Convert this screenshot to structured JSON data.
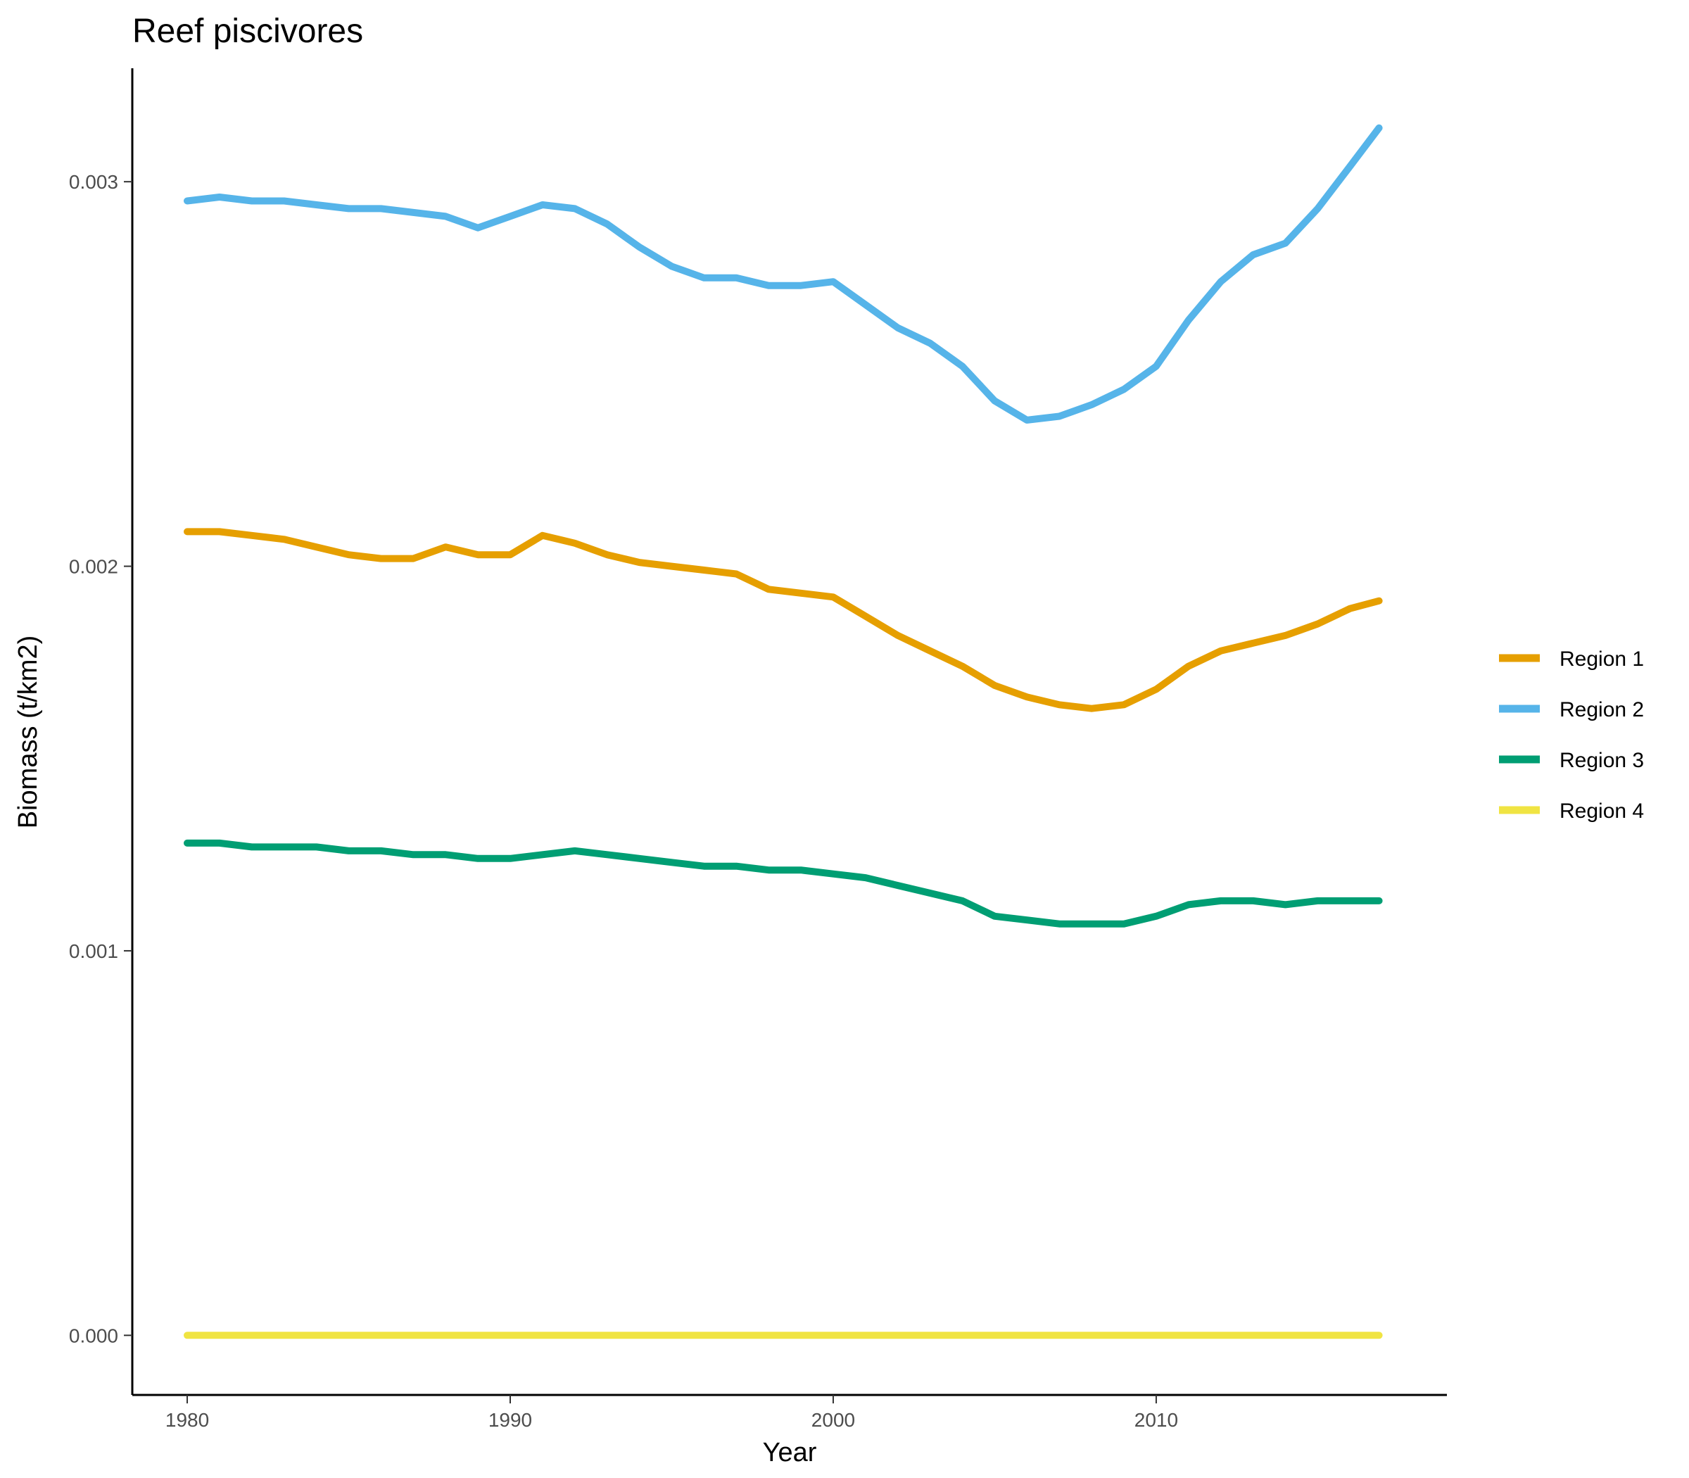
{
  "chart_data": {
    "type": "line",
    "title": "Reef piscivores",
    "xlabel": "Year",
    "ylabel": "Biomass (t/km2)",
    "xlim": [
      1978.3,
      2019.0
    ],
    "ylim": [
      -0.000155,
      0.003295
    ],
    "x_ticks": [
      1980,
      1990,
      2000,
      2010
    ],
    "x_tick_labels": [
      "1980",
      "1990",
      "2000",
      "2010"
    ],
    "y_ticks": [
      0.0,
      0.001,
      0.002,
      0.003
    ],
    "y_tick_labels": [
      "0.000",
      "0.001",
      "0.002",
      "0.003"
    ],
    "grid": false,
    "legend_position": "right",
    "series": [
      {
        "name": "Region 1",
        "color": "#E69F00",
        "x": [
          1980.0,
          1981.0,
          1982.0,
          1983.0,
          1984.0,
          1985.0,
          1986.0,
          1987.0,
          1988.0,
          1989.0,
          1990.0,
          1991.0,
          1992.0,
          1993.0,
          1994.0,
          1995.0,
          1996.0,
          1997.0,
          1998.0,
          1999.0,
          2000.0,
          2001.0,
          2002.0,
          2003.0,
          2004.0,
          2005.0,
          2006.0,
          2007.0,
          2008.0,
          2009.0,
          2010.0,
          2011.0,
          2012.0,
          2013.0,
          2014.0,
          2015.0,
          2016.0,
          2016.9
        ],
        "y": [
          0.00209,
          0.00209,
          0.00208,
          0.00207,
          0.00205,
          0.00203,
          0.00202,
          0.00202,
          0.00205,
          0.00203,
          0.00203,
          0.00208,
          0.00206,
          0.00203,
          0.00201,
          0.002,
          0.00199,
          0.00198,
          0.00194,
          0.00193,
          0.00192,
          0.00187,
          0.00182,
          0.00178,
          0.00174,
          0.00169,
          0.00166,
          0.00164,
          0.00163,
          0.00164,
          0.00168,
          0.00174,
          0.00178,
          0.0018,
          0.00182,
          0.00185,
          0.00189,
          0.00191
        ]
      },
      {
        "name": "Region 2",
        "color": "#56B4E9",
        "x": [
          1980.0,
          1981.0,
          1982.0,
          1983.0,
          1984.0,
          1985.0,
          1986.0,
          1987.0,
          1988.0,
          1989.0,
          1990.0,
          1991.0,
          1992.0,
          1993.0,
          1994.0,
          1995.0,
          1996.0,
          1997.0,
          1998.0,
          1999.0,
          2000.0,
          2001.0,
          2002.0,
          2003.0,
          2004.0,
          2005.0,
          2006.0,
          2007.0,
          2008.0,
          2009.0,
          2010.0,
          2011.0,
          2012.0,
          2013.0,
          2014.0,
          2015.0,
          2016.0,
          2016.9
        ],
        "y": [
          0.00295,
          0.00296,
          0.00295,
          0.00295,
          0.00294,
          0.00293,
          0.00293,
          0.00292,
          0.00291,
          0.00288,
          0.00291,
          0.00294,
          0.00293,
          0.00289,
          0.00283,
          0.00278,
          0.00275,
          0.00275,
          0.00273,
          0.00273,
          0.00274,
          0.00268,
          0.00262,
          0.00258,
          0.00252,
          0.00243,
          0.00238,
          0.00239,
          0.00242,
          0.00246,
          0.00252,
          0.00264,
          0.00274,
          0.00281,
          0.00284,
          0.00293,
          0.00304,
          0.00314
        ]
      },
      {
        "name": "Region 3",
        "color": "#009E73",
        "x": [
          1980.0,
          1981.0,
          1982.0,
          1983.0,
          1984.0,
          1985.0,
          1986.0,
          1987.0,
          1988.0,
          1989.0,
          1990.0,
          1991.0,
          1992.0,
          1993.0,
          1994.0,
          1995.0,
          1996.0,
          1997.0,
          1998.0,
          1999.0,
          2000.0,
          2001.0,
          2002.0,
          2003.0,
          2004.0,
          2005.0,
          2006.0,
          2007.0,
          2008.0,
          2009.0,
          2010.0,
          2011.0,
          2012.0,
          2013.0,
          2014.0,
          2015.0,
          2016.0,
          2016.9
        ],
        "y": [
          0.00128,
          0.00128,
          0.00127,
          0.00127,
          0.00127,
          0.00126,
          0.00126,
          0.00125,
          0.00125,
          0.00124,
          0.00124,
          0.00125,
          0.00126,
          0.00125,
          0.00124,
          0.00123,
          0.00122,
          0.00122,
          0.00121,
          0.00121,
          0.0012,
          0.00119,
          0.00117,
          0.00115,
          0.00113,
          0.00109,
          0.00108,
          0.00107,
          0.00107,
          0.00107,
          0.00109,
          0.00112,
          0.00113,
          0.00113,
          0.00112,
          0.00113,
          0.00113,
          0.00113
        ]
      },
      {
        "name": "Region 4",
        "color": "#F0E442",
        "x": [
          1980.0,
          1990.0,
          2000.0,
          2010.0,
          2016.9
        ],
        "y": [
          0.0,
          0.0,
          0.0,
          0.0,
          0.0
        ]
      }
    ]
  }
}
